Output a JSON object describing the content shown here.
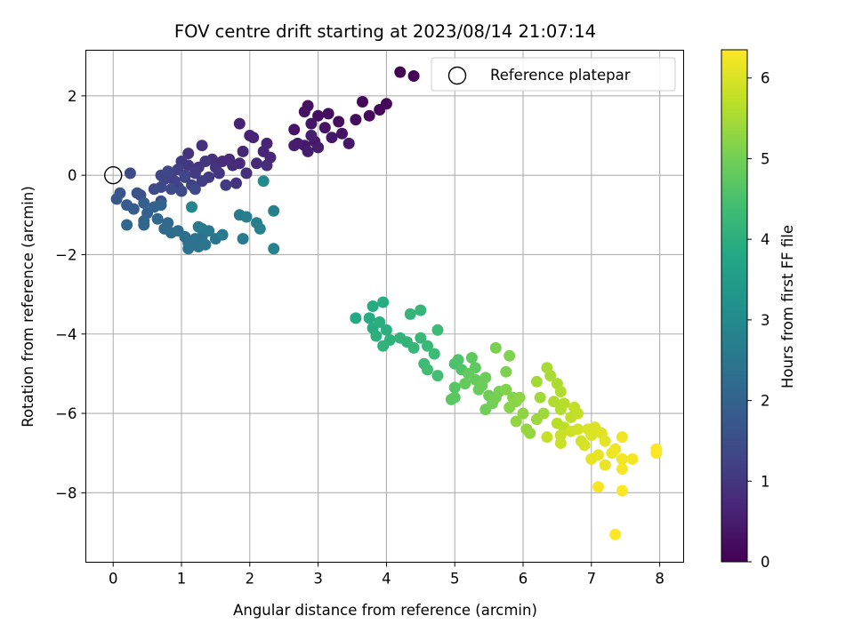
{
  "chart_data": {
    "type": "scatter",
    "title": "FOV centre drift starting at 2023/08/14 21:07:14",
    "xlabel": "Angular distance from reference (arcmin)",
    "ylabel": "Rotation from reference (arcmin)",
    "xlim": [
      -0.4,
      8.35
    ],
    "ylim": [
      -9.75,
      3.15
    ],
    "xticks": [
      "0",
      "1",
      "2",
      "3",
      "4",
      "5",
      "6",
      "7",
      "8"
    ],
    "yticks": [
      "−8",
      "−6",
      "−4",
      "−2",
      "0",
      "2"
    ],
    "grid": true,
    "legend": {
      "position": "top-right",
      "entries": [
        "Reference platepar"
      ]
    },
    "colorbar": {
      "label": "Hours from first FF file",
      "range": [
        0,
        6.35
      ],
      "ticks": [
        "0",
        "1",
        "2",
        "3",
        "4",
        "5",
        "6"
      ],
      "colormap": "viridis"
    },
    "reference_point": {
      "x": 0,
      "y": 0
    },
    "series": [
      {
        "points": [
          [
            4.2,
            2.6,
            0.02
          ],
          [
            4.4,
            2.5,
            0.05
          ],
          [
            4.0,
            1.8,
            0.1
          ],
          [
            3.9,
            1.65,
            0.12
          ],
          [
            3.65,
            1.85,
            0.14
          ],
          [
            3.75,
            1.5,
            0.16
          ],
          [
            3.55,
            1.4,
            0.18
          ],
          [
            3.3,
            1.35,
            0.2
          ],
          [
            3.15,
            1.55,
            0.22
          ],
          [
            3.0,
            1.5,
            0.24
          ],
          [
            2.85,
            1.75,
            0.26
          ],
          [
            2.8,
            1.6,
            0.28
          ],
          [
            3.35,
            1.05,
            0.3
          ],
          [
            3.1,
            1.2,
            0.32
          ],
          [
            2.9,
            1.3,
            0.34
          ],
          [
            2.65,
            1.15,
            0.36
          ],
          [
            3.2,
            0.95,
            0.38
          ],
          [
            2.95,
            0.85,
            0.4
          ],
          [
            2.8,
            0.75,
            0.42
          ],
          [
            3.45,
            0.8,
            0.44
          ],
          [
            2.7,
            0.8,
            0.46
          ],
          [
            2.85,
            0.6,
            0.48
          ],
          [
            3.0,
            0.7,
            0.5
          ],
          [
            2.65,
            0.75,
            0.52
          ],
          [
            2.9,
            1.0,
            0.55
          ],
          [
            1.85,
            1.3,
            0.6
          ],
          [
            2.0,
            1.0,
            0.62
          ],
          [
            2.05,
            0.95,
            0.64
          ],
          [
            2.25,
            0.8,
            0.66
          ],
          [
            2.2,
            0.6,
            0.68
          ],
          [
            2.3,
            0.45,
            0.7
          ],
          [
            1.9,
            0.6,
            0.72
          ],
          [
            2.1,
            0.3,
            0.74
          ],
          [
            1.85,
            0.3,
            0.76
          ],
          [
            1.7,
            0.4,
            0.78
          ],
          [
            1.6,
            0.35,
            0.8
          ],
          [
            1.75,
            0.25,
            0.82
          ],
          [
            2.25,
            0.25,
            0.84
          ],
          [
            1.95,
            0.05,
            0.86
          ],
          [
            1.45,
            0.4,
            0.88
          ],
          [
            1.3,
            0.75,
            0.9
          ],
          [
            1.1,
            0.55,
            0.92
          ],
          [
            1.5,
            0.2,
            0.94
          ],
          [
            1.8,
            -0.2,
            0.96
          ],
          [
            1.55,
            0.05,
            0.98
          ],
          [
            1.35,
            0.35,
            1.0
          ],
          [
            1.25,
            0.2,
            1.02
          ],
          [
            1.1,
            0.25,
            1.04
          ],
          [
            1.0,
            0.35,
            1.06
          ],
          [
            1.2,
            0.05,
            1.08
          ],
          [
            1.4,
            -0.05,
            1.1
          ],
          [
            1.65,
            -0.25,
            1.12
          ],
          [
            1.3,
            -0.15,
            1.14
          ],
          [
            1.05,
            -0.05,
            1.16
          ],
          [
            0.95,
            0.15,
            1.18
          ],
          [
            0.85,
            0.05,
            1.2
          ],
          [
            0.9,
            -0.15,
            1.22
          ],
          [
            1.15,
            -0.25,
            1.24
          ],
          [
            0.95,
            -0.3,
            1.26
          ],
          [
            0.75,
            -0.1,
            1.28
          ],
          [
            0.7,
            0.0,
            1.3
          ],
          [
            1.05,
            0.0,
            1.32
          ],
          [
            0.8,
            0.1,
            1.34
          ],
          [
            1.2,
            -0.35,
            1.36
          ],
          [
            0.7,
            -0.3,
            1.38
          ],
          [
            0.85,
            -0.35,
            1.4
          ],
          [
            1.0,
            -0.4,
            1.42
          ],
          [
            0.25,
            0.05,
            1.44
          ],
          [
            0.6,
            -0.35,
            1.46
          ],
          [
            0.7,
            -0.65,
            1.55
          ],
          [
            0.4,
            -0.5,
            1.6
          ],
          [
            0.35,
            -0.45,
            1.65
          ],
          [
            0.1,
            -0.45,
            1.7
          ],
          [
            0.05,
            -0.6,
            1.75
          ],
          [
            0.2,
            -0.75,
            1.8
          ],
          [
            0.3,
            -0.85,
            1.85
          ],
          [
            0.45,
            -0.7,
            1.9
          ],
          [
            0.5,
            -0.95,
            1.95
          ],
          [
            0.6,
            -0.8,
            2.0
          ],
          [
            0.7,
            -0.75,
            2.02
          ],
          [
            0.45,
            -1.15,
            2.05
          ],
          [
            0.2,
            -1.25,
            2.1
          ],
          [
            0.45,
            -1.25,
            2.12
          ],
          [
            0.65,
            -1.1,
            2.15
          ],
          [
            0.8,
            -1.2,
            2.18
          ],
          [
            0.75,
            -1.35,
            2.2
          ],
          [
            0.85,
            -1.45,
            2.22
          ],
          [
            0.95,
            -1.4,
            2.25
          ],
          [
            1.05,
            -1.55,
            2.3
          ],
          [
            1.1,
            -1.7,
            2.35
          ],
          [
            1.2,
            -1.6,
            2.38
          ],
          [
            1.3,
            -1.55,
            2.4
          ],
          [
            1.1,
            -1.85,
            2.42
          ],
          [
            1.25,
            -1.8,
            2.45
          ],
          [
            1.35,
            -1.75,
            2.48
          ],
          [
            1.5,
            -1.6,
            2.5
          ],
          [
            1.3,
            -1.35,
            2.52
          ],
          [
            1.4,
            -1.4,
            2.55
          ],
          [
            1.25,
            -1.3,
            2.58
          ],
          [
            1.6,
            -1.5,
            2.6
          ],
          [
            1.9,
            -1.6,
            2.62
          ],
          [
            1.85,
            -1.0,
            2.65
          ],
          [
            1.95,
            -1.05,
            2.7
          ],
          [
            2.1,
            -1.2,
            2.72
          ],
          [
            2.15,
            -1.35,
            2.75
          ],
          [
            2.35,
            -0.9,
            2.78
          ],
          [
            2.35,
            -1.85,
            2.8
          ],
          [
            1.15,
            -0.8,
            2.85
          ],
          [
            2.2,
            -0.15,
            3.0
          ],
          [
            3.55,
            -3.6,
            3.85
          ],
          [
            3.75,
            -3.6,
            3.88
          ],
          [
            3.8,
            -3.3,
            3.9
          ],
          [
            3.95,
            -3.2,
            3.92
          ],
          [
            3.8,
            -3.85,
            3.95
          ],
          [
            3.9,
            -3.7,
            3.98
          ],
          [
            4.0,
            -3.9,
            4.0
          ],
          [
            3.85,
            -4.05,
            4.02
          ],
          [
            4.05,
            -4.15,
            4.05
          ],
          [
            3.95,
            -4.3,
            4.08
          ],
          [
            4.2,
            -4.1,
            4.1
          ],
          [
            4.3,
            -4.2,
            4.12
          ],
          [
            4.35,
            -3.5,
            4.15
          ],
          [
            4.5,
            -3.4,
            4.18
          ],
          [
            4.4,
            -4.35,
            4.2
          ],
          [
            4.5,
            -4.1,
            4.22
          ],
          [
            4.6,
            -4.3,
            4.25
          ],
          [
            4.75,
            -3.9,
            4.3
          ],
          [
            4.7,
            -4.5,
            4.32
          ],
          [
            4.55,
            -4.75,
            4.35
          ],
          [
            4.6,
            -4.9,
            4.38
          ],
          [
            4.75,
            -5.05,
            4.4
          ],
          [
            5.0,
            -4.75,
            4.5
          ],
          [
            5.05,
            -4.65,
            4.55
          ],
          [
            5.1,
            -4.9,
            4.6
          ],
          [
            5.0,
            -5.35,
            4.65
          ],
          [
            5.0,
            -5.6,
            4.7
          ],
          [
            4.95,
            -5.65,
            4.72
          ],
          [
            5.25,
            -4.6,
            4.75
          ],
          [
            5.3,
            -4.85,
            4.78
          ],
          [
            5.2,
            -5.0,
            4.8
          ],
          [
            5.15,
            -5.25,
            4.82
          ],
          [
            5.3,
            -5.15,
            4.85
          ],
          [
            5.35,
            -5.4,
            4.88
          ],
          [
            5.4,
            -5.3,
            4.9
          ],
          [
            5.45,
            -5.1,
            4.92
          ],
          [
            5.5,
            -5.55,
            4.95
          ],
          [
            5.45,
            -5.9,
            4.98
          ],
          [
            5.55,
            -5.75,
            5.0
          ],
          [
            5.6,
            -5.6,
            5.02
          ],
          [
            5.65,
            -5.45,
            5.05
          ],
          [
            5.6,
            -4.35,
            5.08
          ],
          [
            5.75,
            -4.95,
            5.1
          ],
          [
            5.8,
            -4.55,
            5.12
          ],
          [
            5.75,
            -5.4,
            5.15
          ],
          [
            5.85,
            -5.6,
            5.18
          ],
          [
            5.8,
            -5.85,
            5.2
          ],
          [
            5.9,
            -5.7,
            5.22
          ],
          [
            5.95,
            -5.6,
            5.25
          ],
          [
            6.0,
            -6.0,
            5.28
          ],
          [
            5.9,
            -6.2,
            5.3
          ],
          [
            6.05,
            -6.4,
            5.32
          ],
          [
            6.1,
            -6.5,
            5.35
          ],
          [
            6.2,
            -6.15,
            5.4
          ],
          [
            6.3,
            -6.0,
            5.42
          ],
          [
            6.25,
            -5.6,
            5.45
          ],
          [
            6.2,
            -5.2,
            5.48
          ],
          [
            6.35,
            -4.85,
            5.5
          ],
          [
            6.4,
            -5.05,
            5.52
          ],
          [
            6.5,
            -5.25,
            5.55
          ],
          [
            6.55,
            -5.45,
            5.58
          ],
          [
            6.45,
            -5.7,
            5.6
          ],
          [
            6.55,
            -5.9,
            5.62
          ],
          [
            6.6,
            -5.75,
            5.65
          ],
          [
            6.5,
            -6.25,
            5.68
          ],
          [
            6.6,
            -6.35,
            5.7
          ],
          [
            6.7,
            -6.1,
            5.72
          ],
          [
            6.75,
            -5.85,
            5.75
          ],
          [
            6.8,
            -6.0,
            5.78
          ],
          [
            6.35,
            -6.6,
            5.8
          ],
          [
            6.55,
            -6.55,
            5.82
          ],
          [
            6.55,
            -6.75,
            5.85
          ],
          [
            6.7,
            -6.45,
            5.88
          ],
          [
            6.8,
            -6.4,
            5.9
          ],
          [
            6.85,
            -6.7,
            5.92
          ],
          [
            6.9,
            -6.8,
            5.95
          ],
          [
            6.95,
            -6.4,
            5.98
          ],
          [
            7.0,
            -6.55,
            6.0
          ],
          [
            7.05,
            -6.35,
            6.02
          ],
          [
            7.15,
            -6.5,
            6.05
          ],
          [
            7.2,
            -6.7,
            6.08
          ],
          [
            7.0,
            -7.15,
            6.1
          ],
          [
            7.1,
            -7.05,
            6.12
          ],
          [
            7.2,
            -7.3,
            6.15
          ],
          [
            7.3,
            -7.0,
            6.18
          ],
          [
            7.35,
            -6.9,
            6.2
          ],
          [
            7.45,
            -6.6,
            6.22
          ],
          [
            7.45,
            -7.15,
            6.25
          ],
          [
            7.6,
            -7.15,
            6.27
          ],
          [
            7.45,
            -7.4,
            6.28
          ],
          [
            7.1,
            -7.85,
            6.3
          ],
          [
            7.45,
            -7.95,
            6.32
          ],
          [
            7.35,
            -9.05,
            6.33
          ],
          [
            7.95,
            -6.9,
            6.34
          ],
          [
            7.95,
            -7.0,
            6.35
          ]
        ]
      }
    ]
  }
}
